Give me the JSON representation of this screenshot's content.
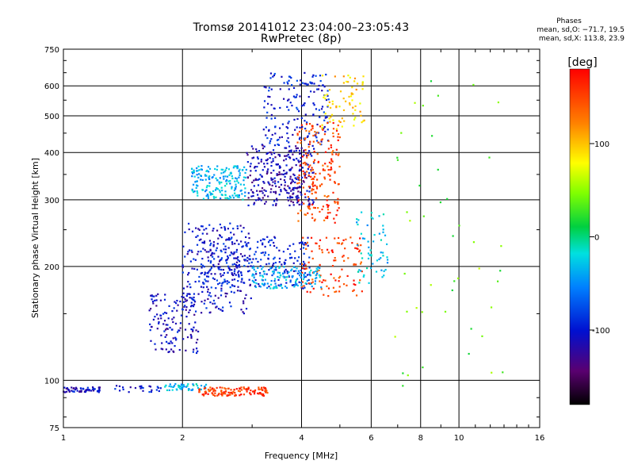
{
  "chart_data": {
    "type": "scatter",
    "title": "Tromsø 20141012 23:04:00–23:05:43",
    "subtitle": "RwPretec (8p)",
    "xlabel": "Frequency [MHz]",
    "ylabel": "Stationary phase Virtual Height [km]",
    "x_scale": "log",
    "y_scale": "log",
    "xlim": [
      1,
      16
    ],
    "ylim": [
      75,
      750
    ],
    "x_ticks": [
      1,
      2,
      4,
      6,
      8,
      10,
      16
    ],
    "y_ticks": [
      75,
      100,
      200,
      300,
      400,
      500,
      600,
      750
    ],
    "grid": true,
    "phase_stats": {
      "heading": "Phases",
      "o_line": "mean, sd,O: −71.7, 19.5",
      "x_line": "mean, sd,X: 113.8, 23.9"
    },
    "colorbar": {
      "label": "[deg]",
      "ticks": [
        100,
        0,
        -100
      ],
      "range": [
        -180,
        180
      ]
    },
    "clusters": [
      {
        "region": "low band",
        "x": [
          1.0,
          1.25
        ],
        "y": [
          93,
          96
        ],
        "phase": -110,
        "n": 60
      },
      {
        "region": "low band 2",
        "x": [
          1.35,
          1.8
        ],
        "y": [
          93,
          97
        ],
        "phase": -100,
        "n": 25
      },
      {
        "region": "E-region",
        "x": [
          1.8,
          2.3
        ],
        "y": [
          94,
          98
        ],
        "phase": -30,
        "n": 50
      },
      {
        "region": "Es orange",
        "x": [
          2.2,
          3.3
        ],
        "y": [
          91,
          96
        ],
        "phase": 155,
        "n": 130
      },
      {
        "region": "F lower",
        "x": [
          1.65,
          2.2
        ],
        "y": [
          118,
          170
        ],
        "phase": -110,
        "n": 140
      },
      {
        "region": "F trace",
        "x": [
          2.0,
          3.0
        ],
        "y": [
          150,
          260
        ],
        "phase": -105,
        "n": 220
      },
      {
        "region": "F mid",
        "x": [
          2.2,
          4.2
        ],
        "y": [
          175,
          240
        ],
        "phase": -95,
        "n": 260
      },
      {
        "region": "cyan lobe",
        "x": [
          2.1,
          2.9
        ],
        "y": [
          300,
          370
        ],
        "phase": -35,
        "n": 180
      },
      {
        "region": "F2 dense",
        "x": [
          2.9,
          4.3
        ],
        "y": [
          290,
          420
        ],
        "phase": -115,
        "n": 300
      },
      {
        "region": "F2 top",
        "x": [
          3.2,
          4.7
        ],
        "y": [
          420,
          650
        ],
        "phase": -95,
        "n": 170
      },
      {
        "region": "orange X band",
        "x": [
          3.9,
          5.0
        ],
        "y": [
          260,
          480
        ],
        "phase": 150,
        "n": 200
      },
      {
        "region": "yellow top",
        "x": [
          4.5,
          5.8
        ],
        "y": [
          450,
          640
        ],
        "phase": 95,
        "n": 70
      },
      {
        "region": "X lower",
        "x": [
          4.0,
          5.7
        ],
        "y": [
          165,
          240
        ],
        "phase": 155,
        "n": 110
      },
      {
        "region": "cyan F",
        "x": [
          3.0,
          4.5
        ],
        "y": [
          175,
          200
        ],
        "phase": -35,
        "n": 120
      },
      {
        "region": "right F",
        "x": [
          5.5,
          6.6
        ],
        "y": [
          180,
          280
        ],
        "phase": -30,
        "n": 60
      },
      {
        "region": "sparse tail",
        "x": [
          6.5,
          13.0
        ],
        "y": [
          90,
          630
        ],
        "phase": 40,
        "n": 45
      }
    ]
  }
}
